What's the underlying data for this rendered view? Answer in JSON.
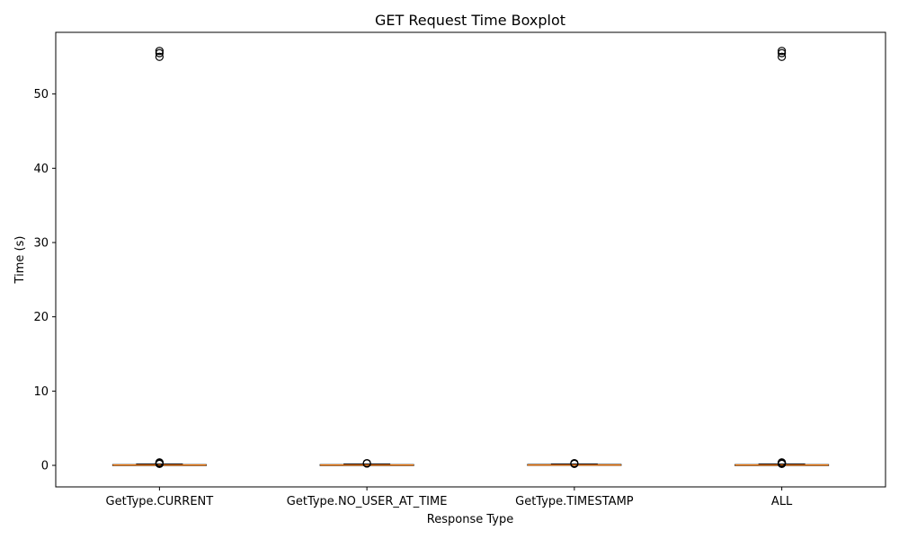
{
  "chart_data": {
    "type": "box",
    "title": "GET Request Time Boxplot",
    "xlabel": "Response Type",
    "ylabel": "Time (s)",
    "ylim": [
      -2.9,
      58.3
    ],
    "yticks": [
      0,
      10,
      20,
      30,
      40,
      50
    ],
    "grid": false,
    "categories": [
      "GetType.CURRENT",
      "GetType.NO_USER_AT_TIME",
      "GetType.TIMESTAMP",
      "ALL"
    ],
    "boxes": [
      {
        "q1": 0.02,
        "median": 0.05,
        "q3": 0.1,
        "whisker_low": 0.0,
        "whisker_high": 0.18,
        "outliers": [
          55.0,
          55.5,
          55.8,
          0.2,
          0.25,
          0.3,
          0.35,
          0.4
        ]
      },
      {
        "q1": 0.02,
        "median": 0.05,
        "q3": 0.1,
        "whisker_low": 0.0,
        "whisker_high": 0.18,
        "outliers": [
          0.25,
          0.3
        ]
      },
      {
        "q1": 0.02,
        "median": 0.05,
        "q3": 0.12,
        "whisker_low": 0.0,
        "whisker_high": 0.18,
        "outliers": [
          0.2,
          0.25,
          0.3
        ]
      },
      {
        "q1": 0.02,
        "median": 0.05,
        "q3": 0.1,
        "whisker_low": 0.0,
        "whisker_high": 0.18,
        "outliers": [
          55.0,
          55.5,
          55.8,
          0.2,
          0.25,
          0.3,
          0.35,
          0.4
        ]
      }
    ],
    "colors": {
      "box": "#000000",
      "median": "#ff7f0e",
      "outlier": "#000000"
    }
  }
}
